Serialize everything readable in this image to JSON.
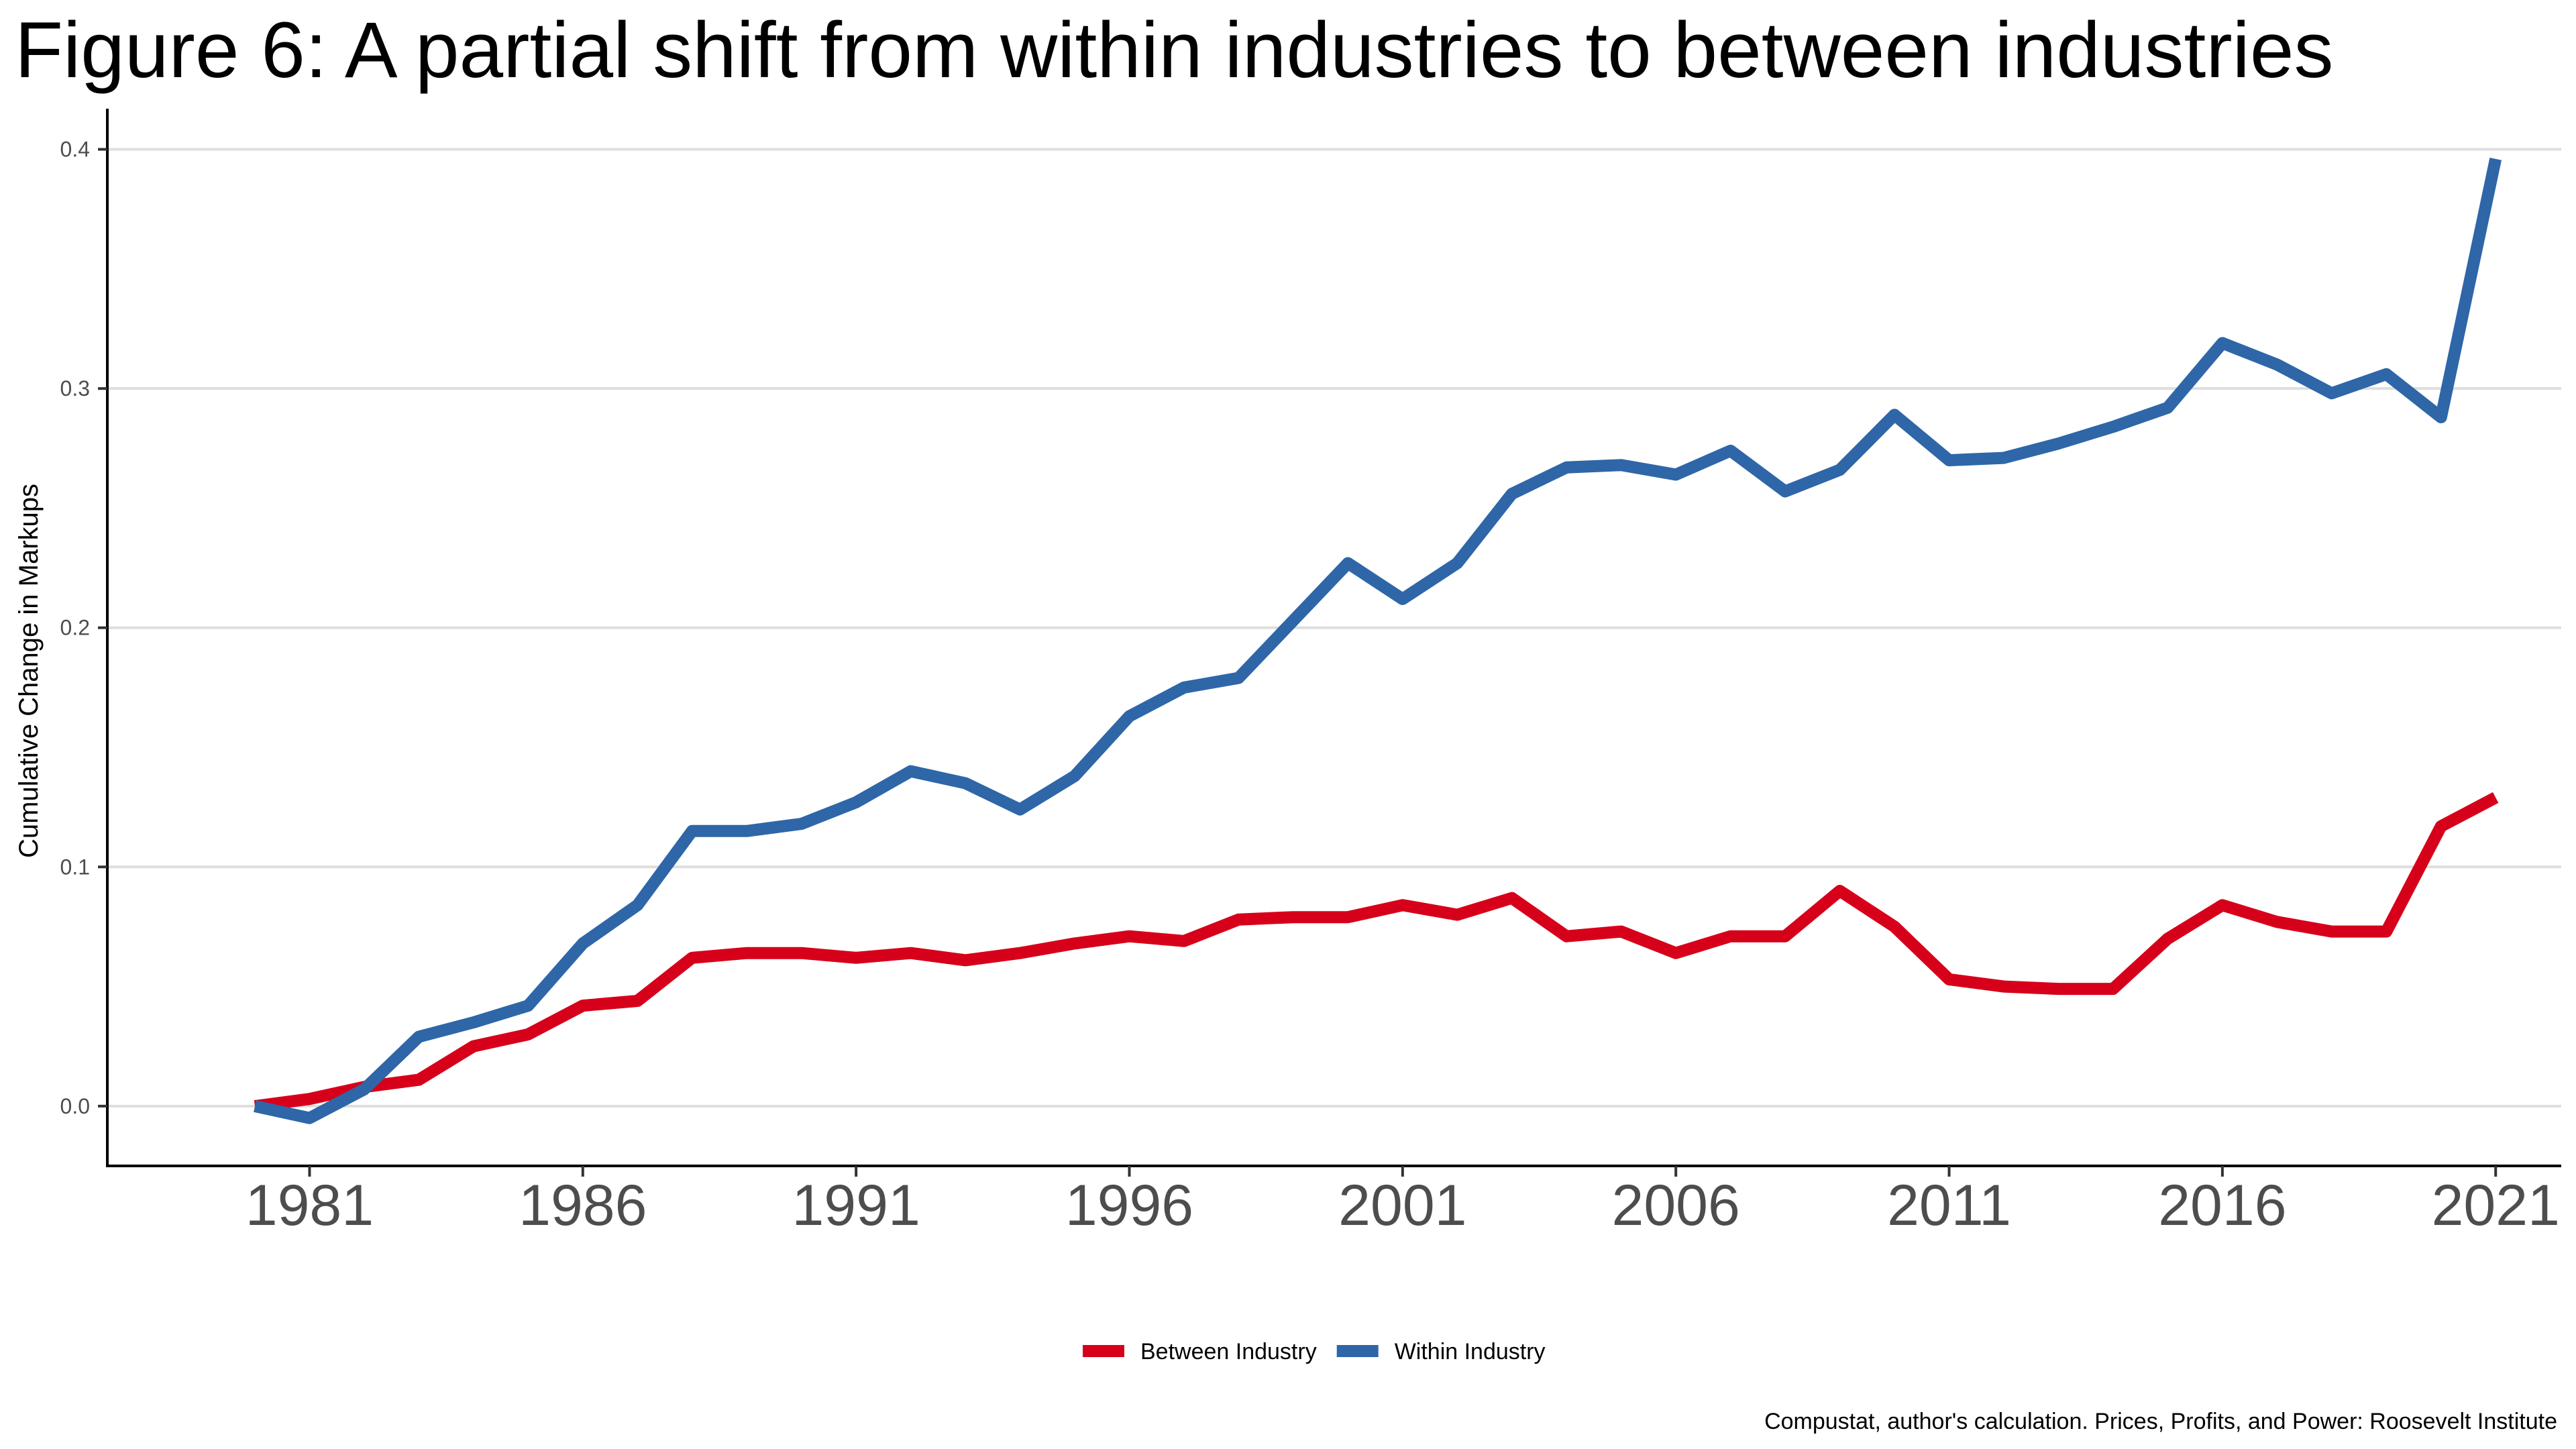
{
  "chart_data": {
    "type": "line",
    "title": "Figure 6: A partial shift from within industries to between industries",
    "xlabel": "",
    "ylabel": "Cumulative Change in Markups",
    "caption": "Compustat, author's calculation. Prices, Profits, and Power: Roosevelt Institute",
    "x": [
      1980,
      1981,
      1982,
      1983,
      1984,
      1985,
      1986,
      1987,
      1988,
      1989,
      1990,
      1991,
      1992,
      1993,
      1994,
      1995,
      1996,
      1997,
      1998,
      1999,
      2000,
      2001,
      2002,
      2003,
      2004,
      2005,
      2006,
      2007,
      2008,
      2009,
      2010,
      2011,
      2012,
      2013,
      2014,
      2015,
      2016,
      2017,
      2018,
      2019,
      2020,
      2021
    ],
    "xticks": [
      1981,
      1986,
      1991,
      1996,
      2001,
      2006,
      2011,
      2016,
      2021
    ],
    "xlim": [
      1977.3,
      2022.2
    ],
    "yticks": [
      0.0,
      0.1,
      0.2,
      0.3,
      0.4
    ],
    "ytick_labels": [
      "0.0",
      "0.1",
      "0.2",
      "0.3",
      "0.4"
    ],
    "ylim": [
      -0.025,
      0.417
    ],
    "grid": "horizontal",
    "legend_position": "bottom",
    "series": [
      {
        "name": "Between Industry",
        "color": "#d7001a",
        "values": [
          0.0,
          0.003,
          0.008,
          0.011,
          0.025,
          0.03,
          0.042,
          0.044,
          0.062,
          0.064,
          0.064,
          0.062,
          0.064,
          0.061,
          0.064,
          0.068,
          0.071,
          0.069,
          0.078,
          0.079,
          0.079,
          0.084,
          0.08,
          0.087,
          0.071,
          0.073,
          0.064,
          0.071,
          0.071,
          0.09,
          0.075,
          0.053,
          0.05,
          0.049,
          0.049,
          0.07,
          0.084,
          0.077,
          0.073,
          0.073,
          0.117,
          0.129
        ]
      },
      {
        "name": "Within Industry",
        "color": "#2e66a8",
        "values": [
          0.0,
          -0.005,
          0.007,
          0.029,
          0.035,
          0.042,
          0.068,
          0.084,
          0.115,
          0.115,
          0.118,
          0.127,
          0.14,
          0.135,
          0.124,
          0.138,
          0.163,
          0.175,
          0.179,
          0.203,
          0.227,
          0.212,
          0.227,
          0.256,
          0.267,
          0.268,
          0.264,
          0.274,
          0.257,
          0.266,
          0.289,
          0.27,
          0.271,
          0.277,
          0.284,
          0.292,
          0.319,
          0.31,
          0.298,
          0.306,
          0.288,
          0.396
        ]
      }
    ]
  }
}
